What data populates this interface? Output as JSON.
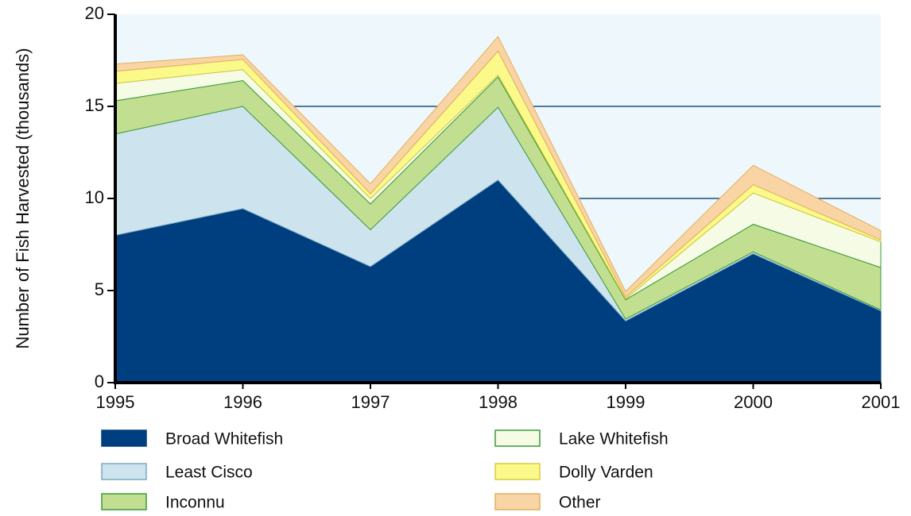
{
  "chart_data": {
    "type": "stacked-area",
    "y_label": "Number of Fish Harvested (thousands)",
    "x": [
      1995,
      1996,
      1997,
      1998,
      1999,
      2000,
      2001
    ],
    "xlim": [
      1995,
      2001
    ],
    "xticks": [
      1995,
      1996,
      1997,
      1998,
      1999,
      2000,
      2001
    ],
    "ylim": [
      0,
      20
    ],
    "yticks": [
      0,
      5,
      10,
      15,
      20
    ],
    "grid_lines": [
      10,
      15
    ],
    "series": [
      {
        "name": "Broad Whitefish",
        "color": "#003f7f",
        "values": [
          8.0,
          9.45,
          6.3,
          11.0,
          3.35,
          7.0,
          3.9
        ]
      },
      {
        "name": "Least Cisco",
        "color": "#cde4ee",
        "values": [
          5.5,
          5.55,
          2.0,
          3.95,
          0.1,
          0.1,
          0.05
        ]
      },
      {
        "name": "Inconnu",
        "color": "#c2de90",
        "values": [
          1.8,
          1.4,
          1.4,
          1.65,
          1.05,
          1.5,
          2.3
        ]
      },
      {
        "name": "Lake Whitefish",
        "color": "#f6fbe6",
        "values": [
          0.95,
          0.6,
          0.3,
          0.1,
          0.05,
          1.7,
          1.4
        ]
      },
      {
        "name": "Dolly Varden",
        "color": "#fbf98a",
        "values": [
          0.65,
          0.55,
          0.25,
          1.3,
          0.1,
          0.45,
          0.1
        ]
      },
      {
        "name": "Other",
        "color": "#f9d4a4",
        "values": [
          0.4,
          0.25,
          0.55,
          0.8,
          0.3,
          1.05,
          0.5
        ]
      }
    ]
  }
}
